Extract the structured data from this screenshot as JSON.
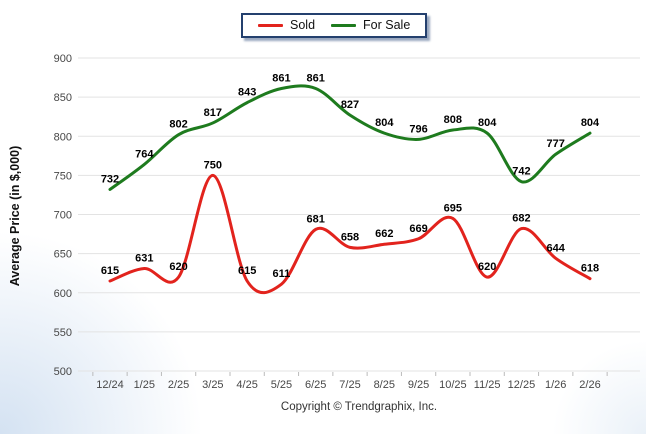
{
  "legend": {
    "items": [
      {
        "label": "Sold",
        "color": "#e2231d"
      },
      {
        "label": "For Sale",
        "color": "#1e7b1e"
      }
    ],
    "border_color": "#24406e"
  },
  "chart_data": {
    "type": "line",
    "title": "",
    "categories": [
      "12/24",
      "1/25",
      "2/25",
      "3/25",
      "4/25",
      "5/25",
      "6/25",
      "7/25",
      "8/25",
      "9/25",
      "10/25",
      "11/25",
      "12/25",
      "1/26",
      "2/26"
    ],
    "series": [
      {
        "name": "Sold",
        "color": "#e2231d",
        "values": [
          615,
          631,
          620,
          750,
          615,
          611,
          681,
          658,
          662,
          669,
          695,
          620,
          682,
          644,
          618
        ]
      },
      {
        "name": "For Sale",
        "color": "#1e7b1e",
        "values": [
          732,
          764,
          802,
          817,
          843,
          861,
          861,
          827,
          804,
          796,
          808,
          804,
          742,
          777,
          804
        ]
      }
    ],
    "xlabel": "",
    "ylabel": "Average Price (in $,000)",
    "ylim": [
      500,
      900
    ],
    "ytick_step": 50,
    "y_ticks": [
      900,
      850,
      800,
      750,
      700,
      650,
      600,
      550,
      500
    ],
    "grid": true,
    "smooth": true,
    "data_labels": true,
    "legend_position": "top-center"
  },
  "footer": {
    "copyright": "Copyright © Trendgraphix, Inc."
  },
  "colors": {
    "grid": "#e3e3e3",
    "axis_tick": "#bbbbbb",
    "tick_label": "#474747",
    "data_label": "#000000",
    "background_tint": "#d4e2f2"
  }
}
